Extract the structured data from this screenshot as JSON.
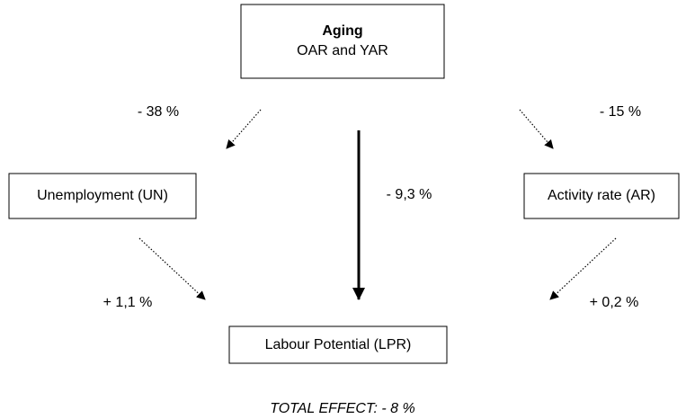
{
  "nodes": [
    {
      "title": "Aging",
      "label": "OAR and YAR"
    },
    {
      "label": "Unemployment (UN)"
    },
    {
      "label": "Activity rate (AR)"
    },
    {
      "label": "Labour Potential (LPR)"
    }
  ],
  "edges": [
    {
      "label": "- 38 %"
    },
    {
      "label": "- 15 %"
    },
    {
      "label": "- 9,3 %"
    },
    {
      "label": "+ 1,1 %"
    },
    {
      "label": "+ 0,2 %"
    }
  ],
  "footer": {
    "total": "TOTAL EFFECT: - 8 %"
  }
}
